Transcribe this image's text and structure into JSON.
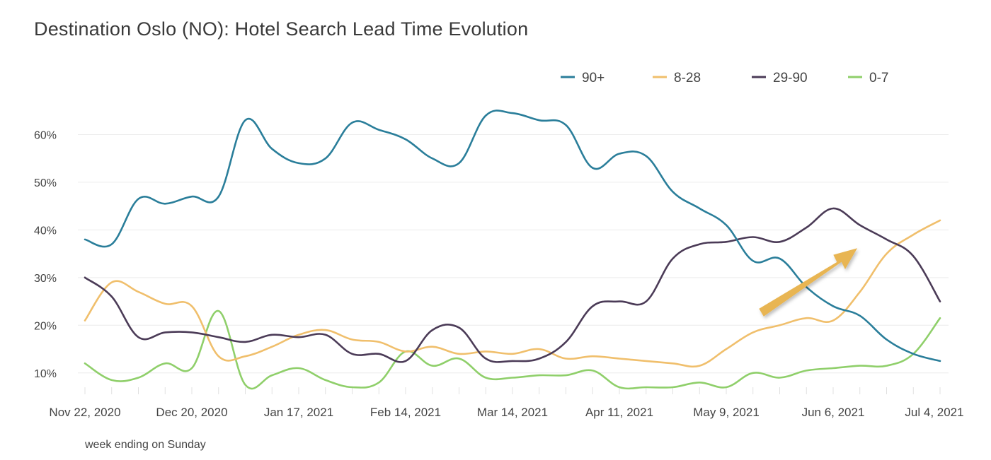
{
  "chart_data": {
    "type": "line",
    "title": "Destination Oslo (NO): Hotel Search Lead Time Evolution",
    "xlabel": "week ending on Sunday",
    "ylabel": "",
    "x_tick_labels": [
      "Nov 22, 2020",
      "Dec 20, 2020",
      "Jan 17, 2021",
      "Feb 14, 2021",
      "Mar 14, 2021",
      "Apr 11, 2021",
      "May 9, 2021",
      "Jun 6, 2021",
      "Jul 4, 2021"
    ],
    "y_tick_labels": [
      "10%",
      "20%",
      "30%",
      "40%",
      "50%",
      "60%"
    ],
    "y_ticks": [
      10,
      20,
      30,
      40,
      50,
      60
    ],
    "ylim": [
      7,
      66
    ],
    "grid": true,
    "legend_position": "top-right",
    "x": [
      "Nov 22, 2020",
      "Nov 29, 2020",
      "Dec 6, 2020",
      "Dec 13, 2020",
      "Dec 20, 2020",
      "Dec 27, 2020",
      "Jan 3, 2021",
      "Jan 10, 2021",
      "Jan 17, 2021",
      "Jan 24, 2021",
      "Jan 31, 2021",
      "Feb 7, 2021",
      "Feb 14, 2021",
      "Feb 21, 2021",
      "Feb 28, 2021",
      "Mar 7, 2021",
      "Mar 14, 2021",
      "Mar 21, 2021",
      "Mar 28, 2021",
      "Apr 4, 2021",
      "Apr 11, 2021",
      "Apr 18, 2021",
      "Apr 25, 2021",
      "May 2, 2021",
      "May 9, 2021",
      "May 16, 2021",
      "May 23, 2021",
      "May 30, 2021",
      "Jun 6, 2021",
      "Jun 13, 2021",
      "Jun 20, 2021",
      "Jun 27, 2021",
      "Jul 4, 2021"
    ],
    "series": [
      {
        "name": "90+",
        "color": "#2a7e9a",
        "values": [
          38,
          37,
          46.5,
          45.5,
          47,
          47,
          63,
          57,
          54,
          55,
          62.5,
          61,
          59,
          55,
          54,
          64,
          64.5,
          63,
          62,
          53,
          56,
          55.5,
          48,
          44.5,
          41,
          33.5,
          34,
          28,
          24,
          22,
          17,
          14,
          12.5
        ]
      },
      {
        "name": "8-28",
        "color": "#f0bf6c",
        "values": [
          21,
          29,
          27,
          24.5,
          24,
          13.5,
          13.5,
          15.5,
          18,
          19,
          17,
          16.5,
          14.5,
          15.5,
          14,
          14.5,
          14,
          15,
          13,
          13.5,
          13,
          12.5,
          12,
          11.5,
          15,
          18.5,
          20,
          21.5,
          21,
          27,
          35,
          39,
          42
        ]
      },
      {
        "name": "29-90",
        "color": "#4b3b57",
        "values": [
          30,
          26,
          17.5,
          18.5,
          18.5,
          17.5,
          16.5,
          18,
          17.5,
          18,
          14,
          14,
          12.5,
          19,
          19.5,
          13,
          12.5,
          13,
          16.5,
          24,
          25,
          25,
          34,
          37,
          37.5,
          38.5,
          37.5,
          40.5,
          44.5,
          41,
          38,
          34.5,
          25
        ]
      },
      {
        "name": "0-7",
        "color": "#8fcf6a",
        "values": [
          12,
          8.5,
          9,
          12,
          11,
          23,
          7.5,
          9.5,
          11,
          8.5,
          7,
          8,
          14.5,
          11.5,
          13,
          9,
          9,
          9.5,
          9.5,
          10.5,
          7,
          7,
          7,
          8,
          7,
          10,
          9,
          10.5,
          11,
          11.5,
          11.5,
          14,
          21.5
        ]
      }
    ],
    "annotations": [
      {
        "type": "arrow",
        "color": "#e8b552",
        "description_shape": "upward arrow"
      }
    ]
  }
}
